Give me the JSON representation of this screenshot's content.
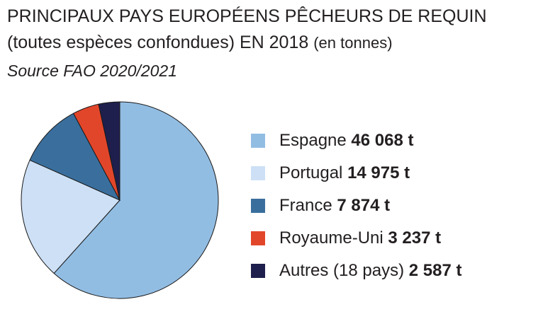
{
  "title_line1": "PRINCIPAUX PAYS EUROPÉENS PÊCHEURS DE REQUIN",
  "title_line2_main": "(toutes espèces confondues) EN 2018",
  "title_line2_unit": "(en tonnes)",
  "source": "Source FAO 2020/2021",
  "chart_data": {
    "type": "pie",
    "title": "PRINCIPAUX PAYS EUROPÉENS PÊCHEURS DE REQUIN (toutes espèces confondues) EN 2018 (en tonnes)",
    "unit": "t",
    "slices": [
      {
        "label": "Espagne",
        "value": 46068,
        "value_label": "46 068 t",
        "color": "#92bde3"
      },
      {
        "label": "Portugal",
        "value": 14975,
        "value_label": "14 975 t",
        "color": "#cde0f5"
      },
      {
        "label": "France",
        "value": 7874,
        "value_label": "7 874 t",
        "color": "#3a6f9d"
      },
      {
        "label": "Royaume-Uni",
        "value": 3237,
        "value_label": "3 237 t",
        "color": "#e2462a"
      },
      {
        "label": "Autres (18 pays)",
        "value": 2587,
        "value_label": "2 587 t",
        "color": "#1e1f4c"
      }
    ],
    "start": "12 o'clock",
    "direction": "clockwise",
    "legend_position": "right"
  }
}
